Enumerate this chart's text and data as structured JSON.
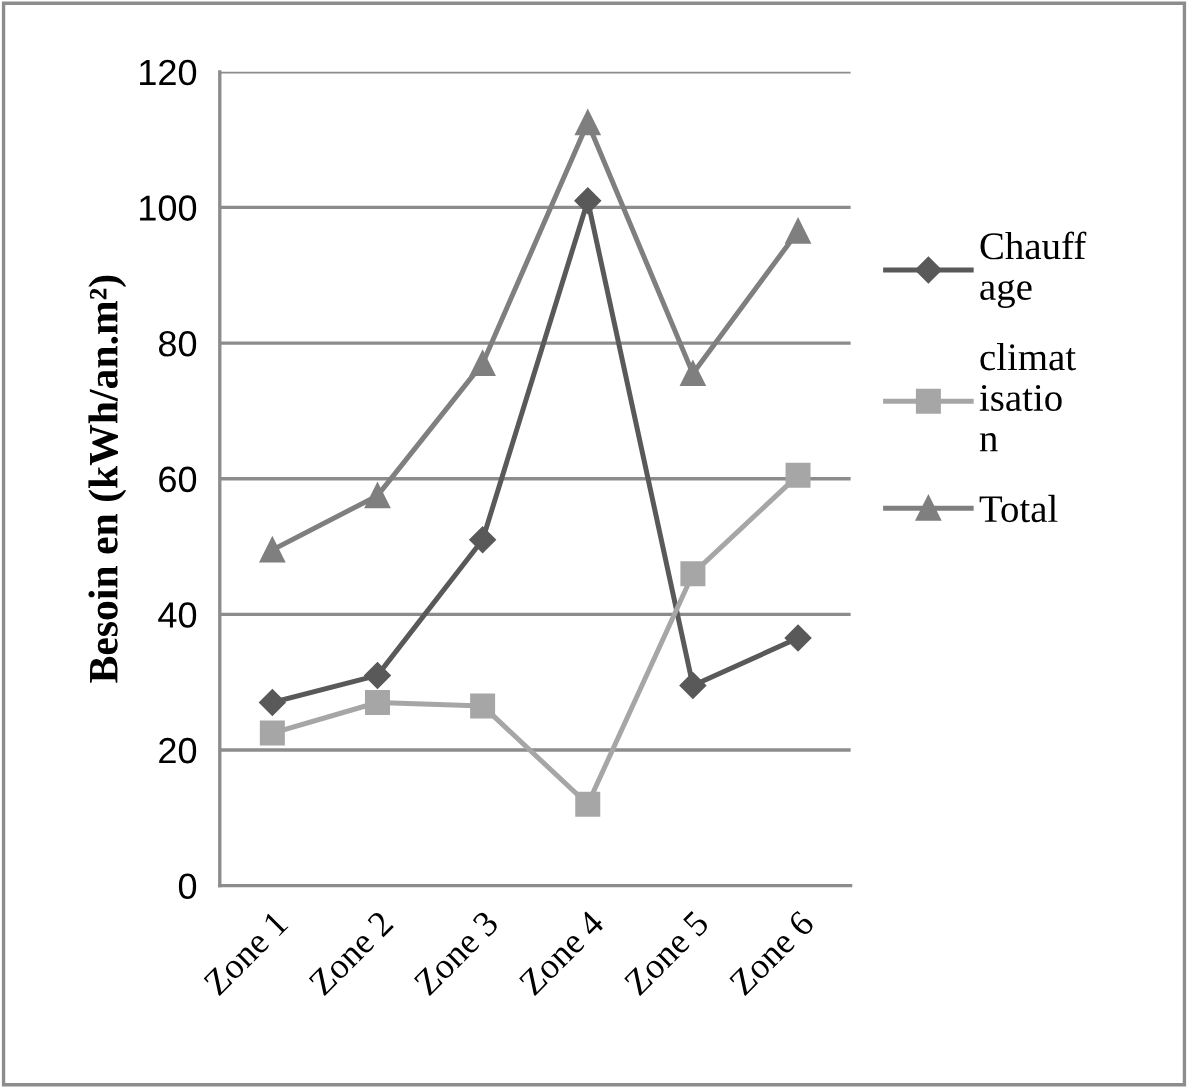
{
  "chart_data": {
    "type": "line",
    "ylabel": "Besoin en (kWh/an.m²)",
    "categories": [
      "Zone 1",
      "Zone 2",
      "Zone 3",
      "Zone 4",
      "Zone 5",
      "Zone 6"
    ],
    "series": [
      {
        "name": "Chauffage",
        "color": "#595959",
        "marker": "diamond",
        "values": [
          27,
          31,
          51,
          101,
          29.5,
          36.5
        ]
      },
      {
        "name": "climatisation",
        "color": "#a6a6a6",
        "marker": "square",
        "values": [
          22.5,
          27,
          26.5,
          12,
          46,
          60.5
        ]
      },
      {
        "name": "Total",
        "color": "#7f7f7f",
        "marker": "triangle",
        "values": [
          49.5,
          57.5,
          77,
          112.5,
          75.5,
          96.5
        ]
      }
    ],
    "ylim": [
      0,
      120
    ],
    "yticks": [
      0,
      20,
      40,
      60,
      80,
      100,
      120
    ],
    "grid": "y",
    "legend": "right"
  }
}
